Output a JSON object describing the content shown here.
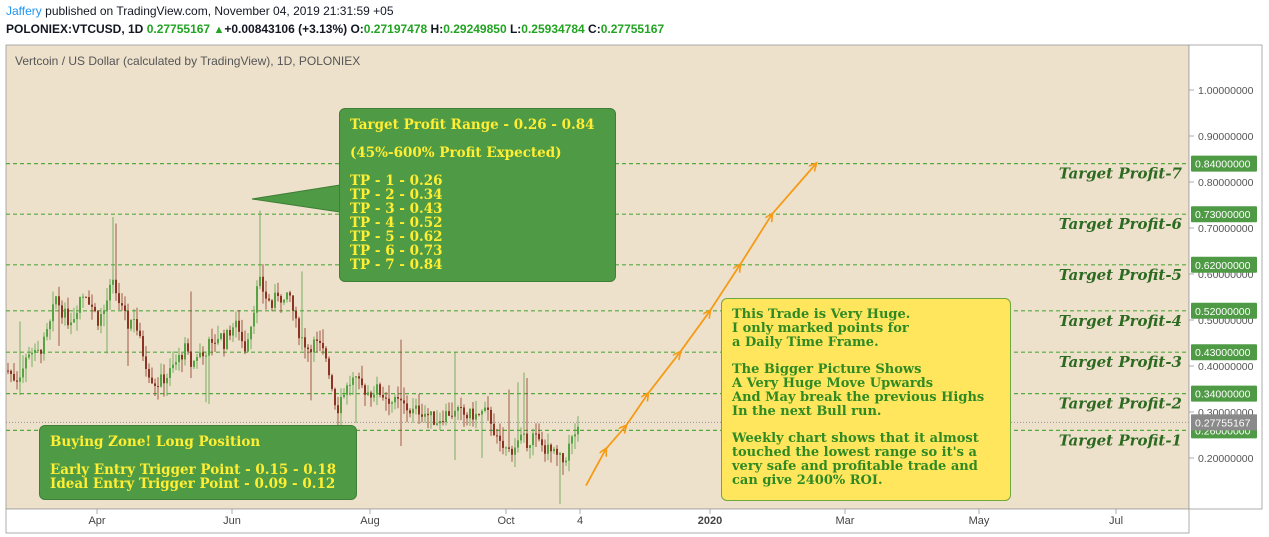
{
  "header": {
    "author": "Jaffery",
    "published": "published on TradingView.com, November 04, 2019 21:31:59 +05",
    "symbol": "POLONIEX:VTCUSD, 1D",
    "price": "0.27755167",
    "change": "+0.00843106 (+3.13%)",
    "open_label": "O:",
    "open": "0.27197478",
    "high_label": "H:",
    "high": "0.29249850",
    "low_label": "L:",
    "low": "0.25934784",
    "close_label": "C:",
    "close": "0.27755167"
  },
  "instrument_title": "Vertcoin / US Dollar (calculated by TradingView), 1D, POLONIEX",
  "colors": {
    "background": "#eee1cc",
    "green_box": "#4f9a45",
    "yellow_box": "#ffe65c",
    "note_text": "#ffee33",
    "green_text": "#2f8a24",
    "dashed": "#55a83f",
    "arrow": "#f59b16",
    "candle_up": "#56a245",
    "candle_down": "#8c3424",
    "price_tag": "#8a8a8a"
  },
  "notes": {
    "targets_box": "Target Profit Range - 0.26 - 0.84\n\n(45%-600% Profit Expected)\n\nTP - 1 - 0.26\nTP - 2 - 0.34\nTP - 3 - 0.43\nTP - 4 - 0.52\nTP - 5 - 0.62\nTP - 6 - 0.73\nTP - 7 - 0.84",
    "buy_box": "Buying Zone! Long Position\n\nEarly Entry Trigger Point - 0.15 - 0.18\nIdeal Entry Trigger Point - 0.09 - 0.12",
    "yellow_box": "This Trade is Very Huge.\nI only marked points for\na Daily Time Frame.\n\nThe Bigger Picture Shows\nA Very Huge Move Upwards\nAnd May break the previous Highs\nIn the next Bull run.\n\nWeekly chart shows that it almost\ntouched the lowest range so it's a\nvery safe and profitable trade and\ncan give 2400% ROI."
  },
  "chart_data": {
    "type": "candlestick",
    "series_label": "VTCUSD",
    "current_price": 0.27755167,
    "current_price_label": "0.27755167",
    "ylim": [
      0.1,
      1.1
    ],
    "y_ticks": [
      0.2,
      0.3,
      0.4,
      0.5,
      0.6,
      0.7,
      0.8,
      0.9,
      1.0
    ],
    "y_tick_labels": [
      "0.20000000",
      "0.30000000",
      "0.40000000",
      "0.50000000",
      "0.60000000",
      "0.70000000",
      "0.80000000",
      "0.90000000",
      "1.00000000"
    ],
    "x_tick_labels": [
      "Apr",
      "Jun",
      "Aug",
      "Oct",
      "4",
      "2020",
      "Mar",
      "May",
      "Jul"
    ],
    "targets": [
      {
        "label": "Target Profit-1",
        "value": 0.26,
        "tag": "0.26000000"
      },
      {
        "label": "Target Profit-2",
        "value": 0.34,
        "tag": "0.34000000"
      },
      {
        "label": "Target Profit-3",
        "value": 0.43,
        "tag": "0.43000000"
      },
      {
        "label": "Target Profit-4",
        "value": 0.52,
        "tag": "0.52000000"
      },
      {
        "label": "Target Profit-5",
        "value": 0.62,
        "tag": "0.62000000"
      },
      {
        "label": "Target Profit-6",
        "value": 0.73,
        "tag": "0.73000000"
      },
      {
        "label": "Target Profit-7",
        "value": 0.84,
        "tag": "0.84000000"
      }
    ],
    "price_path": [
      [
        0,
        0.39
      ],
      [
        8,
        0.37
      ],
      [
        16,
        0.4
      ],
      [
        22,
        0.44
      ],
      [
        28,
        0.42
      ],
      [
        36,
        0.45
      ],
      [
        42,
        0.49
      ],
      [
        48,
        0.55
      ],
      [
        54,
        0.52
      ],
      [
        60,
        0.5
      ],
      [
        66,
        0.51
      ],
      [
        72,
        0.55
      ],
      [
        78,
        0.56
      ],
      [
        84,
        0.53
      ],
      [
        90,
        0.5
      ],
      [
        96,
        0.52
      ],
      [
        100,
        0.55
      ],
      [
        104,
        0.58
      ],
      [
        108,
        0.56
      ],
      [
        114,
        0.52
      ],
      [
        120,
        0.49
      ],
      [
        126,
        0.51
      ],
      [
        130,
        0.47
      ],
      [
        136,
        0.42
      ],
      [
        142,
        0.38
      ],
      [
        148,
        0.36
      ],
      [
        154,
        0.37
      ],
      [
        160,
        0.38
      ],
      [
        166,
        0.4
      ],
      [
        172,
        0.42
      ],
      [
        178,
        0.44
      ],
      [
        182,
        0.4
      ],
      [
        186,
        0.41
      ],
      [
        190,
        0.43
      ],
      [
        196,
        0.42
      ],
      [
        200,
        0.45
      ],
      [
        204,
        0.44
      ],
      [
        208,
        0.46
      ],
      [
        212,
        0.47
      ],
      [
        216,
        0.45
      ],
      [
        220,
        0.47
      ],
      [
        226,
        0.49
      ],
      [
        232,
        0.48
      ],
      [
        236,
        0.43
      ],
      [
        240,
        0.47
      ],
      [
        244,
        0.5
      ],
      [
        248,
        0.56
      ],
      [
        252,
        0.58
      ],
      [
        258,
        0.55
      ],
      [
        264,
        0.53
      ],
      [
        270,
        0.56
      ],
      [
        276,
        0.54
      ],
      [
        282,
        0.55
      ],
      [
        288,
        0.49
      ],
      [
        294,
        0.46
      ],
      [
        300,
        0.44
      ],
      [
        306,
        0.45
      ],
      [
        312,
        0.44
      ],
      [
        318,
        0.42
      ],
      [
        322,
        0.38
      ],
      [
        326,
        0.33
      ],
      [
        330,
        0.31
      ],
      [
        334,
        0.34
      ],
      [
        338,
        0.35
      ],
      [
        344,
        0.37
      ],
      [
        350,
        0.36
      ],
      [
        356,
        0.35
      ],
      [
        362,
        0.34
      ],
      [
        368,
        0.35
      ],
      [
        374,
        0.34
      ],
      [
        380,
        0.33
      ],
      [
        386,
        0.32
      ],
      [
        392,
        0.32
      ],
      [
        398,
        0.31
      ],
      [
        404,
        0.3
      ],
      [
        410,
        0.305
      ],
      [
        416,
        0.3
      ],
      [
        422,
        0.29
      ],
      [
        428,
        0.28
      ],
      [
        434,
        0.29
      ],
      [
        440,
        0.3
      ],
      [
        446,
        0.295
      ],
      [
        452,
        0.3
      ],
      [
        458,
        0.29
      ],
      [
        464,
        0.295
      ],
      [
        470,
        0.29
      ],
      [
        476,
        0.3
      ],
      [
        482,
        0.29
      ],
      [
        486,
        0.26
      ],
      [
        490,
        0.23
      ],
      [
        496,
        0.22
      ],
      [
        502,
        0.215
      ],
      [
        508,
        0.23
      ],
      [
        514,
        0.24
      ],
      [
        520,
        0.235
      ],
      [
        526,
        0.25
      ],
      [
        532,
        0.23
      ],
      [
        538,
        0.22
      ],
      [
        544,
        0.21
      ],
      [
        550,
        0.2
      ],
      [
        556,
        0.19
      ],
      [
        560,
        0.22
      ],
      [
        564,
        0.24
      ],
      [
        568,
        0.26
      ],
      [
        572,
        0.25
      ],
      [
        576,
        0.275
      ]
    ],
    "projection_path": [
      [
        586,
        0.14
      ],
      [
        606,
        0.22
      ],
      [
        626,
        0.27
      ],
      [
        648,
        0.34
      ],
      [
        680,
        0.43
      ],
      [
        710,
        0.52
      ],
      [
        740,
        0.62
      ],
      [
        772,
        0.73
      ],
      [
        816,
        0.84
      ]
    ]
  }
}
